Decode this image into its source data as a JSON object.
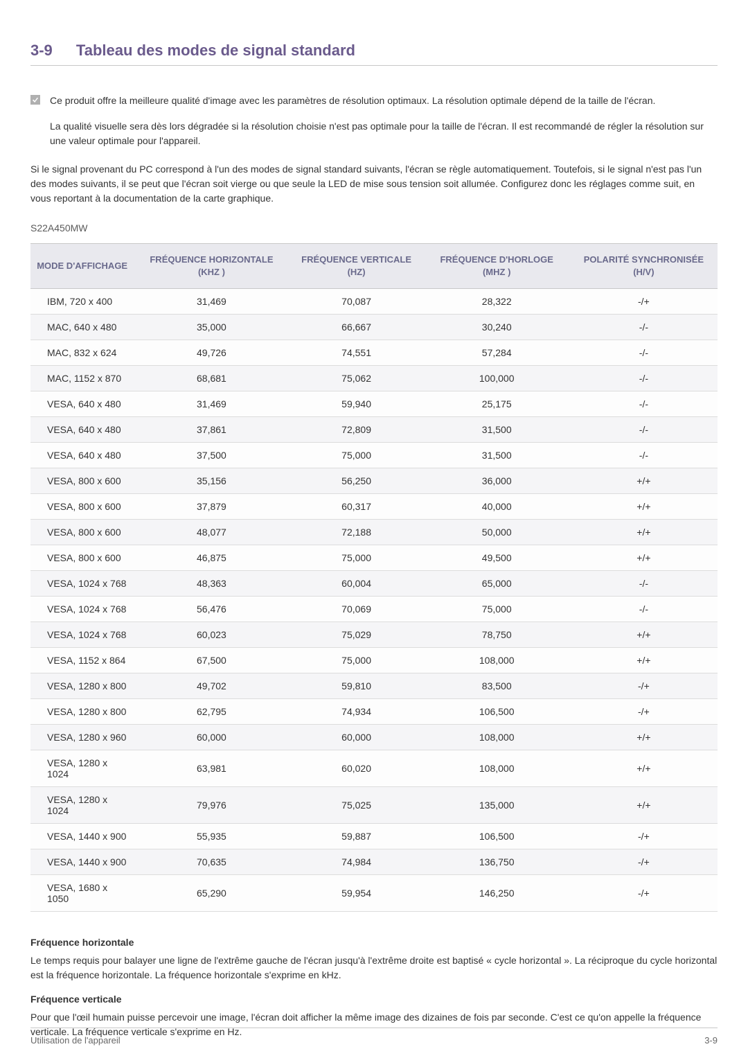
{
  "heading": {
    "number": "3-9",
    "title": "Tableau des modes de signal standard"
  },
  "note": {
    "p1": "Ce produit offre la meilleure qualité d'image avec les paramètres de résolution optimaux. La résolution optimale dépend de la taille de l'écran.",
    "p2": "La qualité visuelle sera dès lors dégradée si la résolution choisie n'est pas optimale pour la taille de l'écran. Il est recommandé de régler la résolution sur une valeur optimale pour l'appareil."
  },
  "intro": "Si le signal provenant du PC correspond à l'un des modes de signal standard suivants, l'écran se règle automatiquement. Toutefois, si le signal n'est pas l'un des modes suivants, il se peut que l'écran soit vierge ou que seule la LED de mise sous tension soit allumée. Configurez donc les réglages comme suit, en vous reportant à la documentation de la carte graphique.",
  "model": "S22A450MW",
  "table": {
    "type": "table",
    "header_color": "#6a6a8c",
    "header_bg": "#e9e9ee",
    "row_alt_bg": "#f5f5f7",
    "border_color": "#dcdcdc",
    "columns": [
      "MODE D'AFFICHAGE",
      "FRÉQUENCE HORIZONTALE (KHZ )",
      "FRÉQUENCE VERTICALE (HZ)",
      "FRÉQUENCE D'HORLOGE (MHZ )",
      "POLARITÉ SYNCHRONISÉE (H/V)"
    ],
    "rows": [
      [
        "IBM, 720 x 400",
        "31,469",
        "70,087",
        "28,322",
        "-/+"
      ],
      [
        "MAC, 640 x 480",
        "35,000",
        "66,667",
        "30,240",
        "-/-"
      ],
      [
        "MAC, 832 x 624",
        "49,726",
        "74,551",
        "57,284",
        "-/-"
      ],
      [
        "MAC, 1152 x 870",
        "68,681",
        "75,062",
        "100,000",
        "-/-"
      ],
      [
        "VESA, 640 x 480",
        "31,469",
        "59,940",
        "25,175",
        "-/-"
      ],
      [
        "VESA, 640 x 480",
        "37,861",
        "72,809",
        "31,500",
        "-/-"
      ],
      [
        "VESA, 640 x 480",
        "37,500",
        "75,000",
        "31,500",
        "-/-"
      ],
      [
        "VESA, 800 x 600",
        "35,156",
        "56,250",
        "36,000",
        "+/+"
      ],
      [
        "VESA, 800 x 600",
        "37,879",
        "60,317",
        "40,000",
        "+/+"
      ],
      [
        "VESA, 800 x 600",
        "48,077",
        "72,188",
        "50,000",
        "+/+"
      ],
      [
        "VESA, 800 x 600",
        "46,875",
        "75,000",
        "49,500",
        "+/+"
      ],
      [
        "VESA, 1024 x 768",
        "48,363",
        "60,004",
        "65,000",
        "-/-"
      ],
      [
        "VESA, 1024 x 768",
        "56,476",
        "70,069",
        "75,000",
        "-/-"
      ],
      [
        "VESA, 1024 x 768",
        "60,023",
        "75,029",
        "78,750",
        "+/+"
      ],
      [
        "VESA, 1152 x 864",
        "67,500",
        "75,000",
        "108,000",
        "+/+"
      ],
      [
        "VESA, 1280 x 800",
        "49,702",
        "59,810",
        "83,500",
        "-/+"
      ],
      [
        "VESA, 1280 x 800",
        "62,795",
        "74,934",
        "106,500",
        "-/+"
      ],
      [
        "VESA, 1280 x 960",
        "60,000",
        "60,000",
        "108,000",
        "+/+"
      ],
      [
        "VESA, 1280 x 1024",
        "63,981",
        "60,020",
        "108,000",
        "+/+"
      ],
      [
        "VESA, 1280 x 1024",
        "79,976",
        "75,025",
        "135,000",
        "+/+"
      ],
      [
        "VESA, 1440 x 900",
        "55,935",
        "59,887",
        "106,500",
        "-/+"
      ],
      [
        "VESA, 1440 x 900",
        "70,635",
        "74,984",
        "136,750",
        "-/+"
      ],
      [
        "VESA, 1680 x 1050",
        "65,290",
        "59,954",
        "146,250",
        "-/+"
      ]
    ]
  },
  "defs": {
    "h1": "Fréquence horizontale",
    "p1": "Le temps requis pour balayer une ligne de l'extrême gauche de l'écran jusqu'à l'extrême droite est baptisé « cycle horizontal ». La réciproque du cycle horizontal est la fréquence horizontale. La fréquence horizontale s'exprime en kHz.",
    "h2": "Fréquence verticale",
    "p2": "Pour que l'œil humain puisse percevoir une image, l'écran doit afficher la même image des dizaines de fois par seconde. C'est ce qu'on appelle la fréquence verticale. La fréquence verticale s'exprime en Hz."
  },
  "footer": {
    "left": "Utilisation de l'appareil",
    "right": "3-9"
  }
}
